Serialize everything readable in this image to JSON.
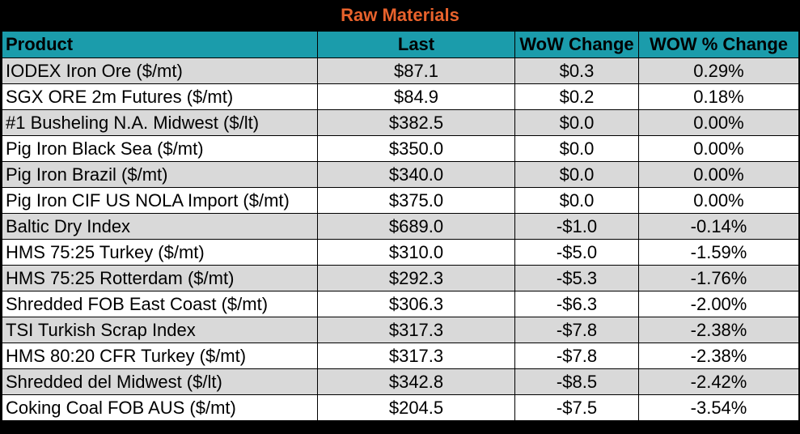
{
  "title": "Raw Materials",
  "colors": {
    "title": "#e8622c",
    "header_bg": "#1b9cab",
    "row_alt": "#d9d9d9",
    "row": "#ffffff"
  },
  "headers": [
    "Product",
    "Last",
    "WoW Change",
    "WOW % Change"
  ],
  "rows": [
    [
      "IODEX  Iron Ore ($/mt)",
      "$87.1",
      "$0.3",
      "0.29%"
    ],
    [
      "SGX ORE 2m Futures ($/mt)",
      "$84.9",
      "$0.2",
      "0.18%"
    ],
    [
      "#1 Busheling N.A. Midwest ($/lt)",
      "$382.5",
      "$0.0",
      "0.00%"
    ],
    [
      "Pig Iron Black Sea ($/mt)",
      "$350.0",
      "$0.0",
      "0.00%"
    ],
    [
      "Pig Iron Brazil ($/mt)",
      "$340.0",
      "$0.0",
      "0.00%"
    ],
    [
      "Pig Iron CIF US NOLA Import ($/mt)",
      "$375.0",
      "$0.0",
      "0.00%"
    ],
    [
      "Baltic Dry Index",
      "$689.0",
      "-$1.0",
      "-0.14%"
    ],
    [
      "HMS 75:25 Turkey ($/mt)",
      "$310.0",
      "-$5.0",
      "-1.59%"
    ],
    [
      "HMS 75:25 Rotterdam ($/mt)",
      "$292.3",
      "-$5.3",
      "-1.76%"
    ],
    [
      "Shredded FOB East Coast ($/mt)",
      "$306.3",
      "-$6.3",
      "-2.00%"
    ],
    [
      "TSI Turkish Scrap Index",
      "$317.3",
      "-$7.8",
      "-2.38%"
    ],
    [
      "HMS 80:20 CFR Turkey ($/mt)",
      "$317.3",
      "-$7.8",
      "-2.38%"
    ],
    [
      "Shredded del  Midwest ($/lt)",
      "$342.8",
      "-$8.5",
      "-2.42%"
    ],
    [
      "Coking Coal FOB AUS ($/mt)",
      "$204.5",
      "-$7.5",
      "-3.54%"
    ]
  ]
}
